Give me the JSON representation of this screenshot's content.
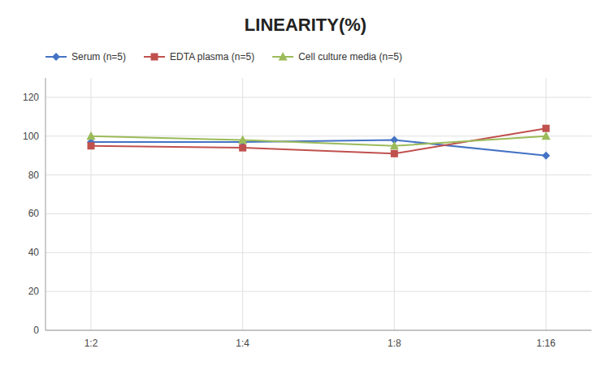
{
  "chart_data": {
    "type": "line",
    "title": "LINEARITY(%)",
    "categories": [
      "1:2",
      "1:4",
      "1:8",
      "1:16"
    ],
    "series": [
      {
        "name": "Serum (n=5)",
        "color": "#4472C4",
        "marker": "diamond",
        "values": [
          97,
          97,
          98,
          90
        ]
      },
      {
        "name": "EDTA plasma (n=5)",
        "color": "#C0504D",
        "marker": "square",
        "values": [
          95,
          94,
          91,
          104
        ]
      },
      {
        "name": "Cell culture media (n=5)",
        "color": "#9BBB59",
        "marker": "triangle",
        "values": [
          100,
          98,
          95,
          100
        ]
      }
    ],
    "ylim": [
      0,
      130
    ],
    "yticks": [
      0,
      20,
      40,
      60,
      80,
      100,
      120
    ],
    "grid": true,
    "legend": "top"
  }
}
